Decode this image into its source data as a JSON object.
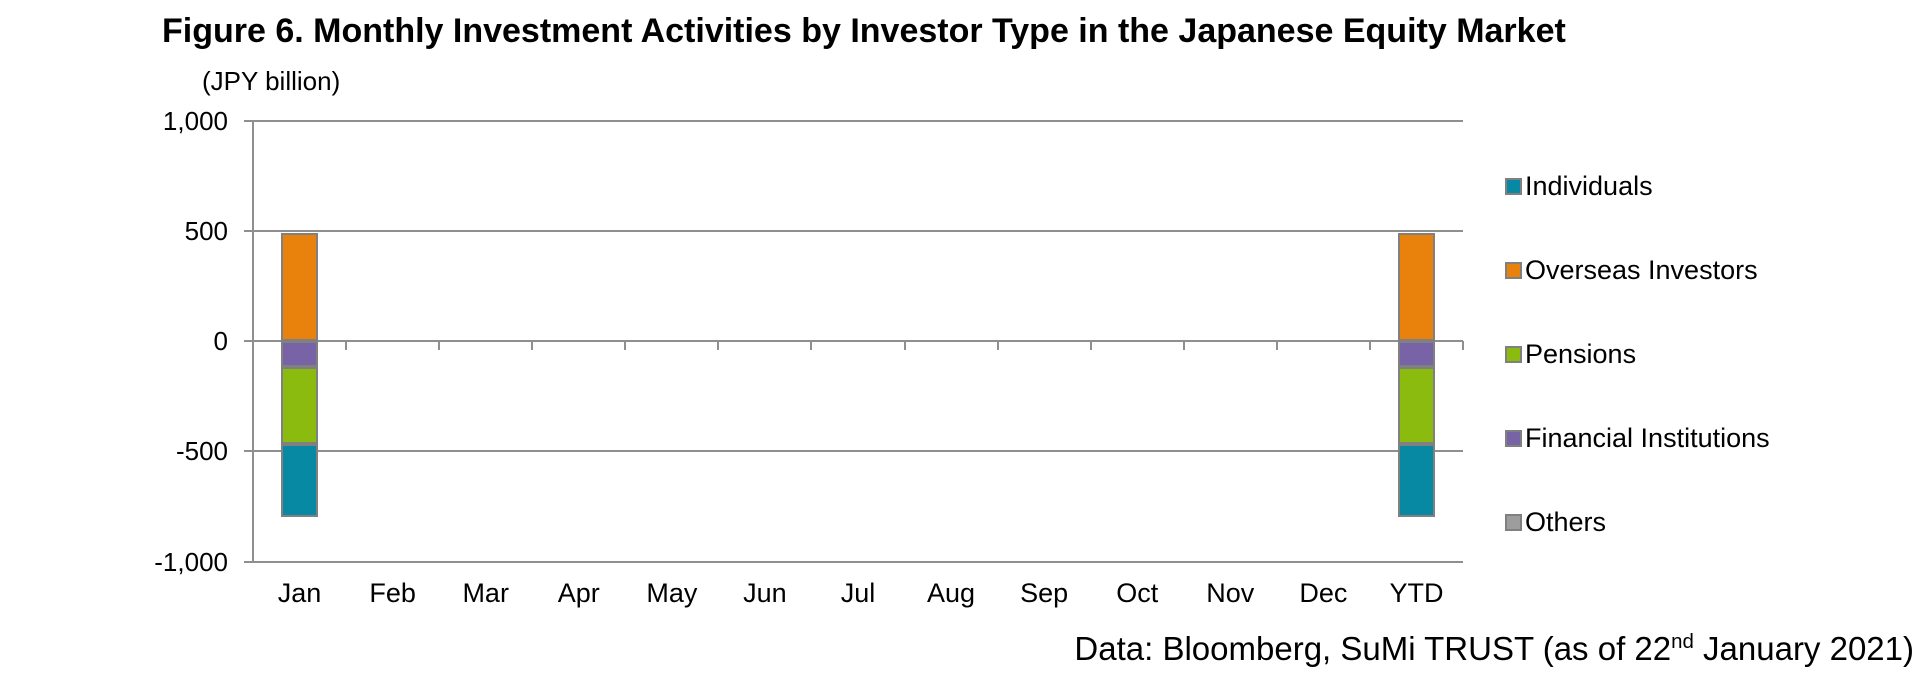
{
  "figure": {
    "title": "Figure 6. Monthly Investment Activities by Investor Type in the Japanese Equity Market",
    "source_note": {
      "prefix": "Data: Bloomberg, SuMi TRUST (as of 22",
      "superscript": "nd",
      "suffix": " January 2021)"
    }
  },
  "chart_data": {
    "type": "bar",
    "stacked": true,
    "title": "Figure 6. Monthly Investment Activities by Investor Type in the Japanese Equity Market",
    "unit_label": "(JPY billion)",
    "xlabel": "",
    "ylabel": "(JPY billion)",
    "categories": [
      "Jan",
      "Feb",
      "Mar",
      "Apr",
      "May",
      "Jun",
      "Jul",
      "Aug",
      "Sep",
      "Oct",
      "Nov",
      "Dec",
      "YTD"
    ],
    "ylim": [
      -1000,
      1000
    ],
    "yticks": [
      1000,
      500,
      0,
      -500,
      -1000
    ],
    "ytick_labels": [
      "1,000",
      "500",
      "0",
      "-500",
      "-1,000"
    ],
    "gridlines": true,
    "legend_position": "right",
    "negative_stack_order": "reverse",
    "colors": {
      "grid": "#8F8F8F",
      "bar_border": "#808080",
      "text": "#000000",
      "background": "#FFFFFF"
    },
    "series": [
      {
        "name": "Individuals",
        "color": "#0789A3",
        "values": [
          -335,
          0,
          0,
          0,
          0,
          0,
          0,
          0,
          0,
          0,
          0,
          0,
          -335
        ]
      },
      {
        "name": "Overseas Investors",
        "color": "#E8820D",
        "values": [
          490,
          0,
          0,
          0,
          0,
          0,
          0,
          0,
          0,
          0,
          0,
          0,
          490
        ]
      },
      {
        "name": "Pensions",
        "color": "#8CBB10",
        "values": [
          -345,
          0,
          0,
          0,
          0,
          0,
          0,
          0,
          0,
          0,
          0,
          0,
          -345
        ]
      },
      {
        "name": "Financial Institutions",
        "color": "#7763A6",
        "values": [
          -120,
          0,
          0,
          0,
          0,
          0,
          0,
          0,
          0,
          0,
          0,
          0,
          -120
        ]
      },
      {
        "name": "Others",
        "color": "#9D9D9D",
        "values": [
          0,
          0,
          0,
          0,
          0,
          0,
          0,
          0,
          0,
          0,
          0,
          0,
          0
        ]
      }
    ]
  }
}
